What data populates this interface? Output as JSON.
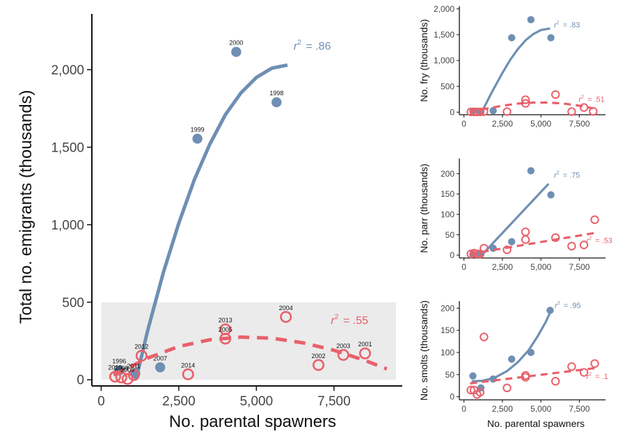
{
  "colors": {
    "blue": "#6f8fb3",
    "red": "#e8606a",
    "highlight": "#ebebeb"
  },
  "chart_data": [
    {
      "type": "scatter",
      "xlabel": "No. parental spawners",
      "ylabel": "Total no. emigrants (thousands)",
      "xlim": [
        -300,
        9700
      ],
      "ylim": [
        -40,
        2360
      ],
      "xticks": [
        0,
        2500,
        5000,
        7500
      ],
      "xtick_labels": [
        "0",
        "2,500",
        "5,000",
        "7,500"
      ],
      "yticks": [
        0,
        500,
        1000,
        1500,
        2000
      ],
      "ytick_labels": [
        "0",
        "500",
        "1,000",
        "1,500",
        "2,000"
      ],
      "highlight_box": {
        "x": [
          0,
          9500
        ],
        "y": [
          0,
          500
        ]
      },
      "series": [
        {
          "style": "filled-blue",
          "points": [
            {
              "x": 4350,
              "y": 2115,
              "label": "2000"
            },
            {
              "x": 5650,
              "y": 1790,
              "label": "1998"
            },
            {
              "x": 3100,
              "y": 1555,
              "label": "1999"
            },
            {
              "x": 1900,
              "y": 80,
              "label": "2007"
            },
            {
              "x": 580,
              "y": 60,
              "label": "1996"
            },
            {
              "x": 1100,
              "y": 40,
              "label": ""
            }
          ],
          "fit": {
            "curve": [
              [
                1120,
                0
              ],
              [
                1500,
                320
              ],
              [
                2000,
                690
              ],
              [
                2500,
                1010
              ],
              [
                3000,
                1290
              ],
              [
                3500,
                1520
              ],
              [
                4000,
                1710
              ],
              [
                4500,
                1850
              ],
              [
                5000,
                1950
              ],
              [
                5500,
                2010
              ],
              [
                6000,
                2030
              ]
            ],
            "label": "r",
            "sup": "2",
            "value": "= .86",
            "label_x": 6200,
            "label_y": 2130
          }
        },
        {
          "style": "open-red",
          "points": [
            {
              "x": 5950,
              "y": 405,
              "label": "2004"
            },
            {
              "x": 4000,
              "y": 325,
              "label": "2013"
            },
            {
              "x": 4000,
              "y": 265,
              "label": "2005"
            },
            {
              "x": 1300,
              "y": 155,
              "label": "2012"
            },
            {
              "x": 8500,
              "y": 170,
              "label": "2001"
            },
            {
              "x": 7800,
              "y": 160,
              "label": "2003"
            },
            {
              "x": 7000,
              "y": 95,
              "label": "2002"
            },
            {
              "x": 2800,
              "y": 35,
              "label": "2014"
            },
            {
              "x": 450,
              "y": 20,
              "label": "2010"
            },
            {
              "x": 1050,
              "y": 30,
              "label": "2011"
            },
            {
              "x": 650,
              "y": 15,
              "label": "2008"
            },
            {
              "x": 850,
              "y": 5,
              "label": "2009"
            }
          ],
          "fit": {
            "curve": [
              [
                400,
                30
              ],
              [
                1500,
                140
              ],
              [
                2500,
                215
              ],
              [
                3500,
                258
              ],
              [
                4500,
                275
              ],
              [
                5500,
                268
              ],
              [
                6500,
                238
              ],
              [
                7500,
                190
              ],
              [
                8500,
                124
              ],
              [
                9200,
                70
              ]
            ],
            "label": "r",
            "sup": "2",
            "value": "= .55",
            "label_x": 7400,
            "label_y": 360
          }
        }
      ]
    },
    {
      "type": "scatter",
      "ylabel": "No. fry (thousands)",
      "xlim": [
        -300,
        9200
      ],
      "ylim": [
        -50,
        2050
      ],
      "xticks": [
        0,
        2500,
        5000,
        7500
      ],
      "xtick_labels": [
        "0",
        "2,500",
        "5,000",
        "7,500"
      ],
      "yticks": [
        0,
        500,
        1000,
        1500,
        2000
      ],
      "ytick_labels": [
        "0",
        "500",
        "1,000",
        "1,500",
        "2,000"
      ],
      "series": [
        {
          "style": "filled-blue",
          "points": [
            {
              "x": 4350,
              "y": 1790
            },
            {
              "x": 3100,
              "y": 1440
            },
            {
              "x": 5650,
              "y": 1440
            },
            {
              "x": 1900,
              "y": 30
            },
            {
              "x": 580,
              "y": 20
            },
            {
              "x": 1100,
              "y": 15
            }
          ],
          "fit": {
            "curve": [
              [
                1150,
                0
              ],
              [
                1800,
                380
              ],
              [
                2500,
                760
              ],
              [
                3000,
                1010
              ],
              [
                3500,
                1220
              ],
              [
                4000,
                1390
              ],
              [
                4500,
                1510
              ],
              [
                5000,
                1590
              ],
              [
                5600,
                1620
              ]
            ],
            "label": "r",
            "sup": "2",
            "value": "= .83",
            "label_x": 5850,
            "label_y": 1640
          }
        },
        {
          "style": "open-red",
          "points": [
            {
              "x": 5950,
              "y": 340
            },
            {
              "x": 4000,
              "y": 240
            },
            {
              "x": 4000,
              "y": 170
            },
            {
              "x": 7800,
              "y": 90
            },
            {
              "x": 8400,
              "y": 15
            },
            {
              "x": 7000,
              "y": 10
            },
            {
              "x": 2800,
              "y": 10
            },
            {
              "x": 1300,
              "y": 10
            },
            {
              "x": 450,
              "y": 5
            },
            {
              "x": 650,
              "y": 5
            },
            {
              "x": 850,
              "y": 5
            },
            {
              "x": 1050,
              "y": 5
            }
          ],
          "fit": {
            "curve": [
              [
                400,
                5
              ],
              [
                1500,
                70
              ],
              [
                2500,
                125
              ],
              [
                3500,
                165
              ],
              [
                4500,
                185
              ],
              [
                5500,
                185
              ],
              [
                6500,
                165
              ],
              [
                7500,
                125
              ],
              [
                8400,
                75
              ]
            ],
            "label": "r",
            "sup": "2",
            "value": "= .51",
            "label_x": 7450,
            "label_y": 200
          }
        }
      ]
    },
    {
      "type": "scatter",
      "ylabel": "No. parr (thousands)",
      "xlim": [
        -300,
        9200
      ],
      "ylim": [
        -7,
        237
      ],
      "xticks": [
        0,
        2500,
        5000,
        7500
      ],
      "xtick_labels": [
        "0",
        "2,500",
        "5,000",
        "7,500"
      ],
      "yticks": [
        0,
        50,
        100,
        150,
        200
      ],
      "ytick_labels": [
        "0",
        "50",
        "100",
        "150",
        "200"
      ],
      "series": [
        {
          "style": "filled-blue",
          "points": [
            {
              "x": 4350,
              "y": 207
            },
            {
              "x": 5650,
              "y": 148
            },
            {
              "x": 3100,
              "y": 33
            },
            {
              "x": 1900,
              "y": 17
            },
            {
              "x": 580,
              "y": 2
            },
            {
              "x": 1100,
              "y": 3
            }
          ],
          "fit": {
            "curve": [
              [
                1150,
                0
              ],
              [
                5500,
                175
              ]
            ],
            "label": "r",
            "sup": "2",
            "value": "= .75",
            "label_x": 5850,
            "label_y": 190
          }
        },
        {
          "style": "open-red",
          "points": [
            {
              "x": 8500,
              "y": 87
            },
            {
              "x": 4000,
              "y": 57
            },
            {
              "x": 4000,
              "y": 38
            },
            {
              "x": 5950,
              "y": 43
            },
            {
              "x": 7000,
              "y": 22
            },
            {
              "x": 7800,
              "y": 25
            },
            {
              "x": 2800,
              "y": 13
            },
            {
              "x": 1300,
              "y": 17
            },
            {
              "x": 450,
              "y": 3
            },
            {
              "x": 650,
              "y": 5
            },
            {
              "x": 850,
              "y": 3
            },
            {
              "x": 1050,
              "y": 3
            }
          ],
          "fit": {
            "curve": [
              [
                400,
                3
              ],
              [
                8600,
                55
              ]
            ],
            "label": "r",
            "sup": "2",
            "value": "= .53",
            "label_x": 7950,
            "label_y": 30
          }
        }
      ]
    },
    {
      "type": "scatter",
      "ylabel": "No. smolts (thousands)",
      "xlabel": "No. parental spawners",
      "xlim": [
        -300,
        9200
      ],
      "ylim": [
        -7,
        216
      ],
      "xticks": [
        0,
        2500,
        5000,
        7500
      ],
      "xtick_labels": [
        "0",
        "2,500",
        "5,000",
        "7,500"
      ],
      "yticks": [
        0,
        50,
        100,
        150,
        200
      ],
      "ytick_labels": [
        "0",
        "50",
        "100",
        "150",
        "200"
      ],
      "series": [
        {
          "style": "filled-blue",
          "points": [
            {
              "x": 5600,
              "y": 195
            },
            {
              "x": 4350,
              "y": 100
            },
            {
              "x": 3100,
              "y": 85
            },
            {
              "x": 1900,
              "y": 40
            },
            {
              "x": 580,
              "y": 47
            },
            {
              "x": 1100,
              "y": 20
            }
          ],
          "fit": {
            "curve": [
              [
                500,
                35
              ],
              [
                1200,
                36
              ],
              [
                2000,
                43
              ],
              [
                2800,
                58
              ],
              [
                3500,
                78
              ],
              [
                4200,
                105
              ],
              [
                4800,
                137
              ],
              [
                5300,
                168
              ],
              [
                5600,
                190
              ]
            ],
            "label": "r",
            "sup": "2",
            "value": "= .95",
            "label_x": 5900,
            "label_y": 200
          }
        },
        {
          "style": "open-red",
          "points": [
            {
              "x": 1300,
              "y": 135
            },
            {
              "x": 8500,
              "y": 75
            },
            {
              "x": 7000,
              "y": 68
            },
            {
              "x": 7800,
              "y": 55
            },
            {
              "x": 4000,
              "y": 48
            },
            {
              "x": 4000,
              "y": 44
            },
            {
              "x": 5950,
              "y": 35
            },
            {
              "x": 2800,
              "y": 20
            },
            {
              "x": 450,
              "y": 15
            },
            {
              "x": 650,
              "y": 15
            },
            {
              "x": 850,
              "y": 5
            },
            {
              "x": 1050,
              "y": 10
            }
          ],
          "fit": {
            "curve": [
              [
                400,
                30
              ],
              [
                8600,
                65
              ]
            ],
            "label": "r",
            "sup": "2",
            "value": "= .1",
            "label_x": 7950,
            "label_y": 40
          }
        }
      ]
    }
  ]
}
